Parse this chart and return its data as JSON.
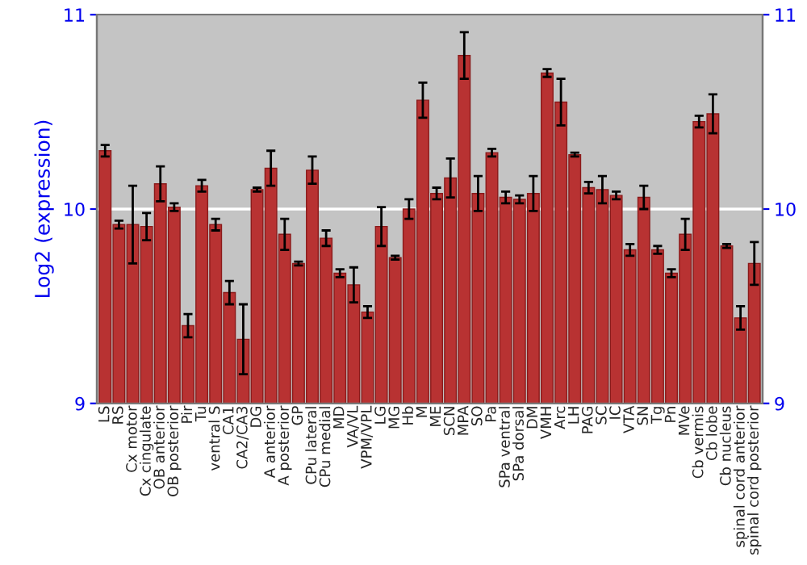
{
  "chart_data": {
    "type": "bar",
    "ylabel": "Log2 (expression)",
    "categories": [
      "LS",
      "RS",
      "Cx motor",
      "Cx cingulate",
      "OB anterior",
      "OB posterior",
      "Pir",
      "Tu",
      "ventral S",
      "CA1",
      "CA2/CA3",
      "DG",
      "A anterior",
      "A posterior",
      "GP",
      "CPu lateral",
      "CPu medial",
      "MD",
      "VA/VL",
      "VPM/VPL",
      "LG",
      "MG",
      "Hb",
      "M",
      "ME",
      "SCN",
      "MPA",
      "SO",
      "Pa",
      "SPa ventral",
      "SPa dorsal",
      "DM",
      "VMH",
      "Arc",
      "LH",
      "PAG",
      "SC",
      "IC",
      "VTA",
      "SN",
      "Tg",
      "Pn",
      "MVe",
      "Cb vermis",
      "Cb lobe",
      "Cb nucleus",
      "spinal cord anterior",
      "spinal cord posterior"
    ],
    "values": [
      10.3,
      9.92,
      9.92,
      9.91,
      10.13,
      10.01,
      9.4,
      10.12,
      9.92,
      9.57,
      9.33,
      10.1,
      10.21,
      9.87,
      9.72,
      10.2,
      9.85,
      9.67,
      9.61,
      9.47,
      9.91,
      9.75,
      10.0,
      10.56,
      10.08,
      10.16,
      10.79,
      10.08,
      10.29,
      10.06,
      10.05,
      10.08,
      10.7,
      10.55,
      10.28,
      10.11,
      10.1,
      10.07,
      9.79,
      10.06,
      9.79,
      9.67,
      9.87,
      10.45,
      10.49,
      9.81,
      9.44,
      9.72
    ],
    "errors": [
      0.03,
      0.02,
      0.2,
      0.07,
      0.09,
      0.02,
      0.06,
      0.03,
      0.03,
      0.06,
      0.18,
      0.01,
      0.09,
      0.08,
      0.01,
      0.07,
      0.04,
      0.02,
      0.09,
      0.03,
      0.1,
      0.01,
      0.05,
      0.09,
      0.03,
      0.1,
      0.12,
      0.09,
      0.02,
      0.03,
      0.02,
      0.09,
      0.02,
      0.12,
      0.01,
      0.03,
      0.07,
      0.02,
      0.03,
      0.06,
      0.02,
      0.02,
      0.08,
      0.03,
      0.1,
      0.01,
      0.06,
      0.11
    ],
    "color": "#b83232",
    "ylim": [
      9,
      11
    ],
    "yticks": [
      9,
      10,
      11
    ],
    "y2lim": [
      9,
      11
    ],
    "y2ticks": [
      9,
      10,
      11
    ],
    "grid": "y"
  }
}
